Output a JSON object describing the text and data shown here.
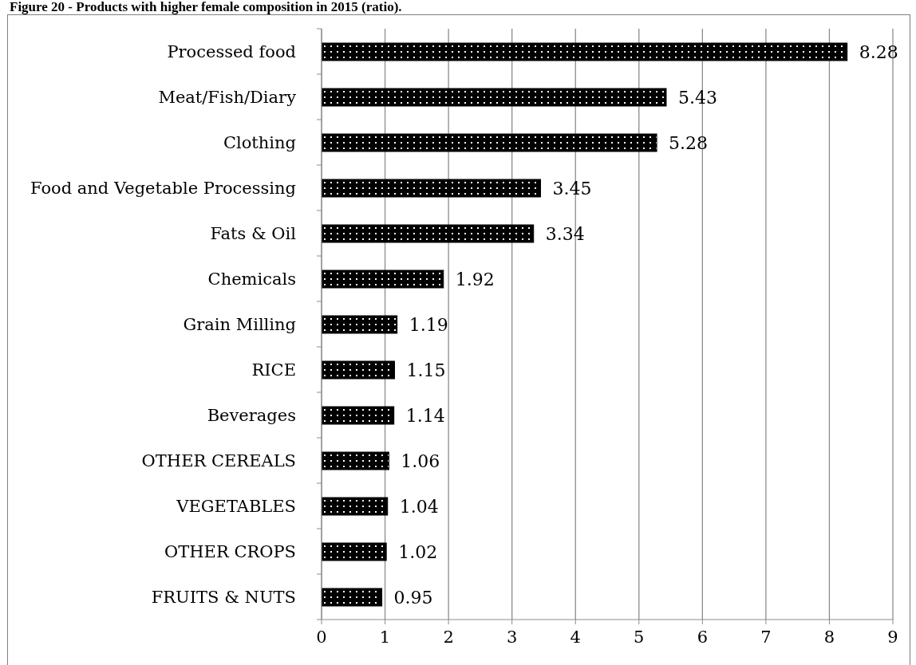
{
  "chart_data": {
    "type": "bar",
    "orientation": "horizontal",
    "title": "Figure 20 - Products with higher female composition in 2015 (ratio).",
    "categories": [
      "Processed food",
      "Meat/Fish/Diary",
      "Clothing",
      "Food and Vegetable Processing",
      "Fats & Oil",
      "Chemicals",
      "Grain Milling",
      "RICE",
      "Beverages",
      "OTHER CEREALS",
      "VEGETABLES",
      "OTHER CROPS",
      "FRUITS & NUTS"
    ],
    "values": [
      8.28,
      5.43,
      5.28,
      3.45,
      3.34,
      1.92,
      1.19,
      1.15,
      1.14,
      1.06,
      1.04,
      1.02,
      0.95
    ],
    "color": "#000000",
    "xlim": [
      0,
      9
    ],
    "xticks": [
      0,
      1,
      2,
      3,
      4,
      5,
      6,
      7,
      8,
      9
    ],
    "grid": "x",
    "data_labels": true
  }
}
